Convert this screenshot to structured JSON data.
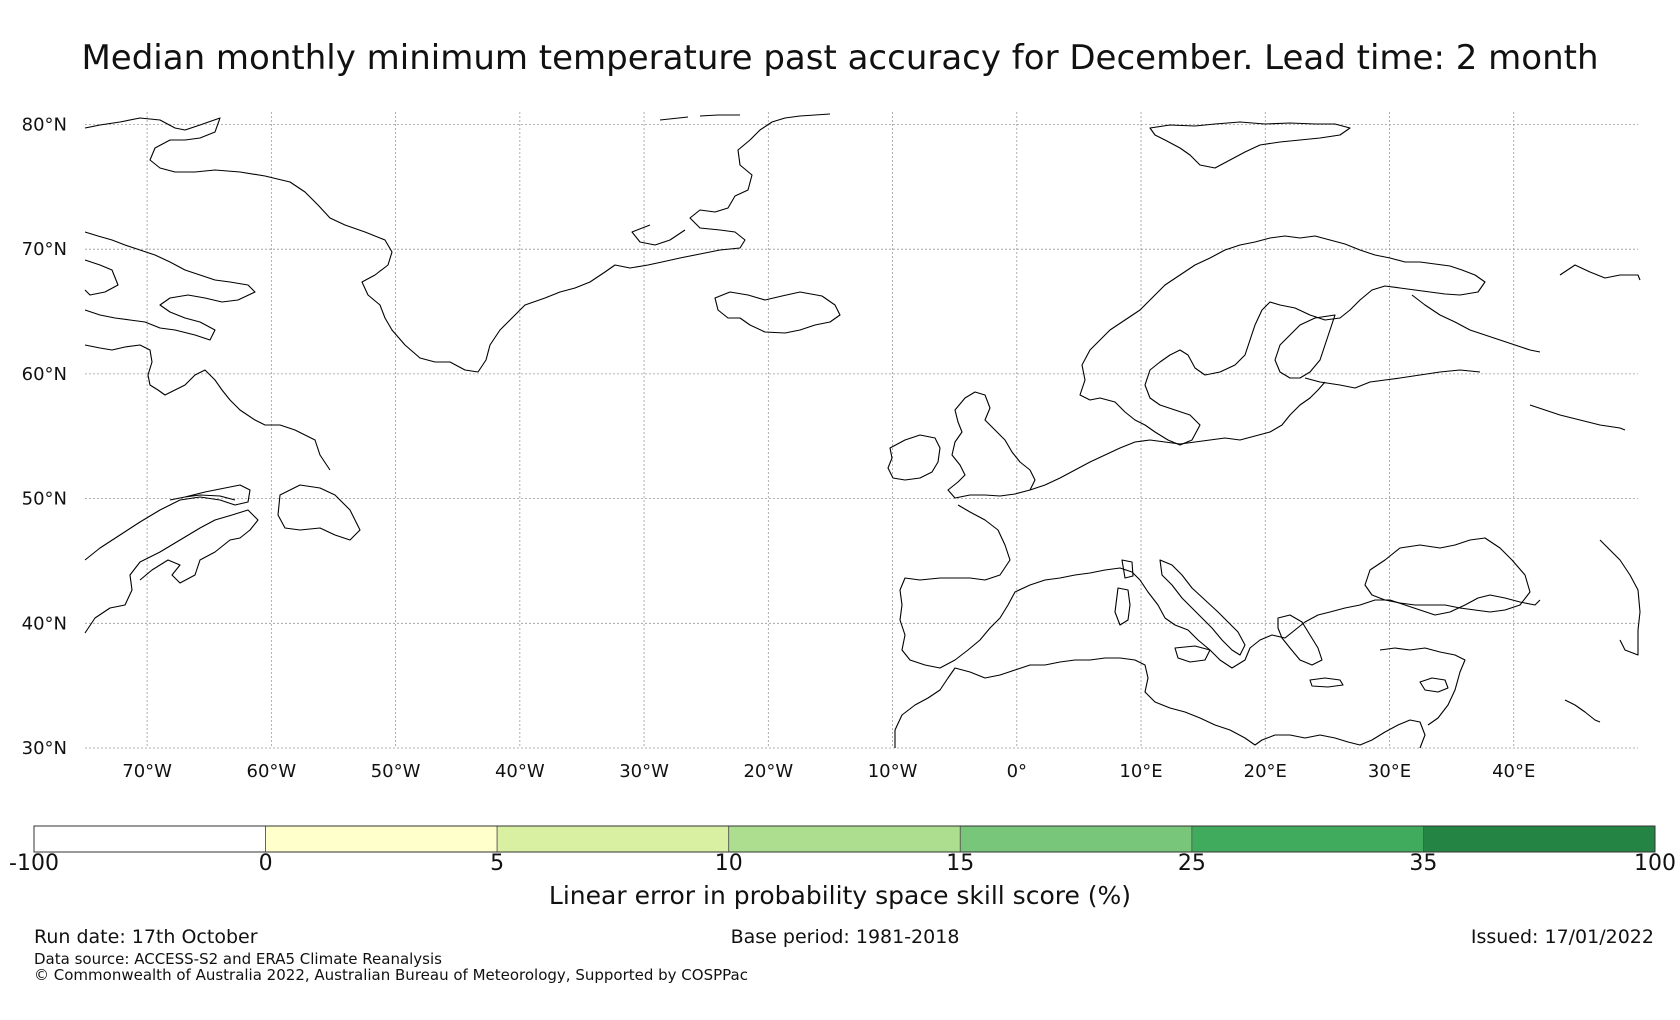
{
  "title": "Median monthly minimum temperature past accuracy for December. Lead time: 2 month",
  "map": {
    "lon_range": [
      -75,
      50
    ],
    "lat_range": [
      30,
      81
    ],
    "lat_ticks": [
      {
        "value": 80,
        "label": "80°N"
      },
      {
        "value": 70,
        "label": "70°N"
      },
      {
        "value": 60,
        "label": "60°N"
      },
      {
        "value": 50,
        "label": "50°N"
      },
      {
        "value": 40,
        "label": "40°N"
      },
      {
        "value": 30,
        "label": "30°N"
      }
    ],
    "lon_ticks": [
      {
        "value": -70,
        "label": "70°W"
      },
      {
        "value": -60,
        "label": "60°W"
      },
      {
        "value": -50,
        "label": "50°W"
      },
      {
        "value": -40,
        "label": "40°W"
      },
      {
        "value": -30,
        "label": "30°W"
      },
      {
        "value": -20,
        "label": "20°W"
      },
      {
        "value": -10,
        "label": "10°W"
      },
      {
        "value": 0,
        "label": "0°"
      },
      {
        "value": 10,
        "label": "10°E"
      },
      {
        "value": 20,
        "label": "20°E"
      },
      {
        "value": 30,
        "label": "30°E"
      },
      {
        "value": 40,
        "label": "40°E"
      }
    ]
  },
  "colorbar": {
    "label": "Linear error in probability space skill score (%)",
    "ticks": [
      "-100",
      "0",
      "5",
      "10",
      "15",
      "25",
      "35",
      "100"
    ],
    "colors": [
      "#ffffff",
      "#ffffcc",
      "#d9f0a3",
      "#addd8e",
      "#78c679",
      "#41ab5d",
      "#238443"
    ]
  },
  "footer": {
    "run_date": "Run date: 17th October",
    "base_period": "Base period: 1981-2018",
    "issued": "Issued: 17/01/2022",
    "data_source": "Data source: ACCESS-S2 and ERA5 Climate Reanalysis",
    "copyright": "© Commonwealth of Australia 2022, Australian Bureau of Meteorology, Supported by COSPPac"
  }
}
